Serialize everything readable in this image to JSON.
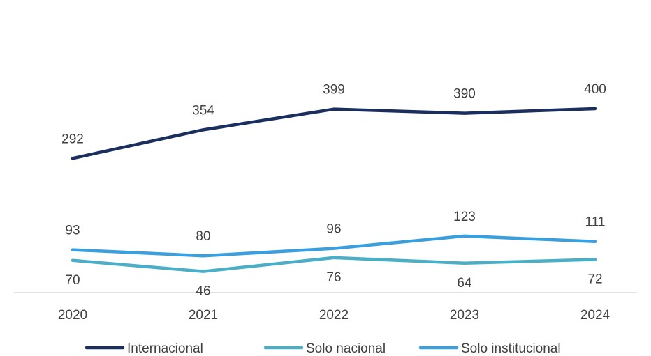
{
  "chart_data": {
    "type": "line",
    "title": "",
    "xlabel": "",
    "ylabel": "",
    "categories": [
      "2020",
      "2021",
      "2022",
      "2023",
      "2024"
    ],
    "ylim": [
      0,
      420
    ],
    "grid": false,
    "legend_position": "bottom",
    "series": [
      {
        "name": "Internacional",
        "color": "#1b2f5e",
        "values": [
          292,
          354,
          399,
          390,
          400
        ]
      },
      {
        "name": "Solo nacional",
        "color": "#4aaec6",
        "values": [
          70,
          46,
          76,
          64,
          72
        ]
      },
      {
        "name": "Solo institucional",
        "color": "#3a9fdc",
        "values": [
          93,
          80,
          96,
          123,
          111
        ]
      }
    ]
  }
}
